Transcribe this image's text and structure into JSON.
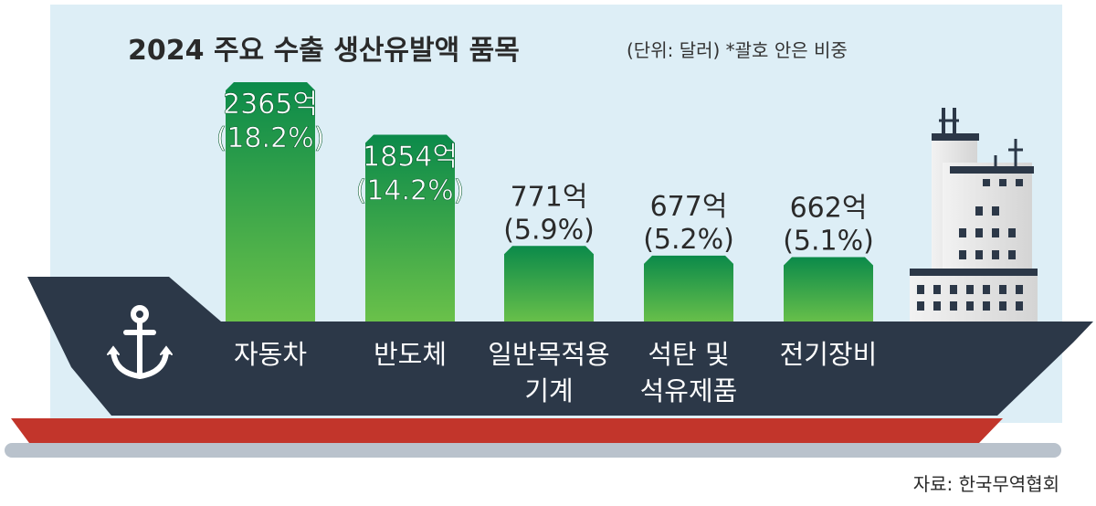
{
  "chart_data": {
    "type": "bar",
    "title": "2024 주요 수출 생산유발액 품목",
    "subtitle": "(단위: 달러) *괄호 안은 비중",
    "categories": [
      [
        "자동차"
      ],
      [
        "반도체"
      ],
      [
        "일반목적용",
        "기계"
      ],
      [
        "석탄 및",
        "석유제품"
      ],
      [
        "전기장비"
      ]
    ],
    "values": [
      2365,
      1854,
      771,
      677,
      662
    ],
    "value_labels": [
      "2365억",
      "1854억",
      "771억",
      "677억",
      "662억"
    ],
    "share_labels": [
      "(18.2%)",
      "(14.2%)",
      "(5.9%)",
      "(5.2%)",
      "(5.1%)"
    ],
    "unit": "억 달러"
  },
  "source": "자료: 한국무역협회",
  "colors": {
    "background_panel": "#ddeef6",
    "hull": "#2c3848",
    "hull_bottom": "#c2352b",
    "bar_top": "#0b8a4a",
    "bar_bottom": "#6cc24a",
    "deck_base": "#b9c2cc",
    "building": "#e7e7e7"
  },
  "icons": {
    "anchor": "anchor-icon"
  }
}
